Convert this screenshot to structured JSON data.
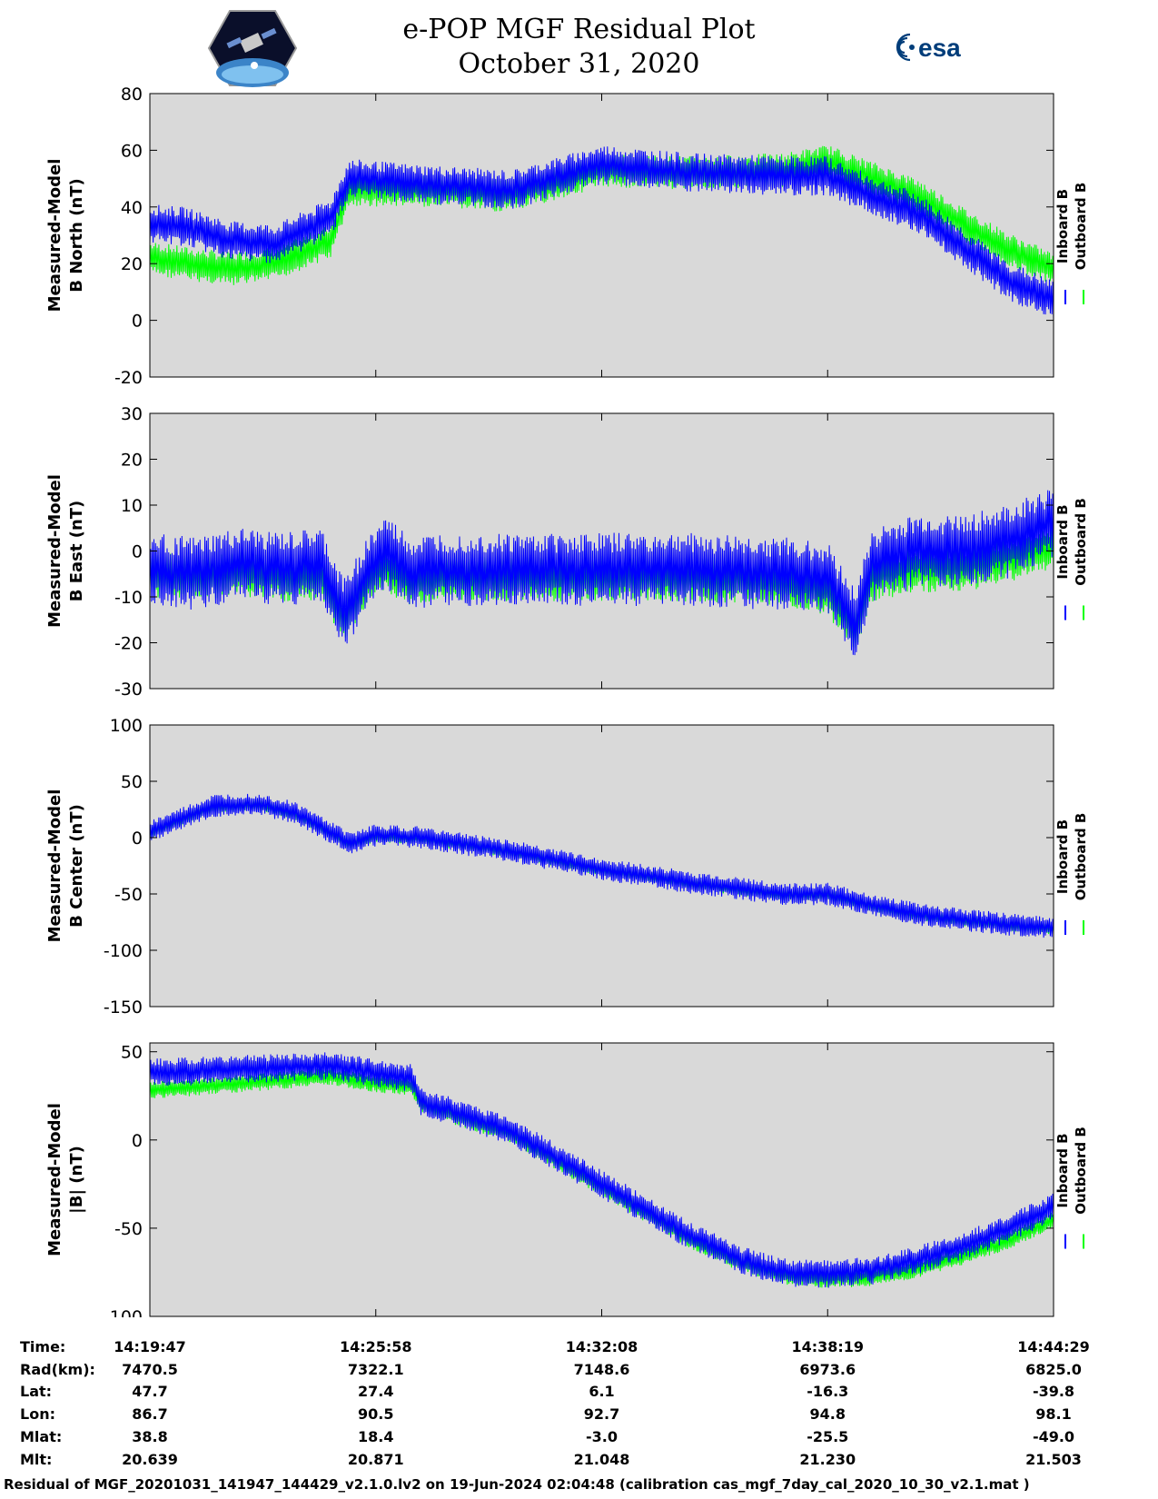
{
  "header": {
    "title_line1": "e-POP MGF Residual Plot",
    "title_line2": "October 31, 2020",
    "left_logo": "cassiope-mission-patch",
    "right_logo": "esa-logo",
    "right_logo_text": "esa"
  },
  "colors": {
    "inboard": "#0000ff",
    "outboard": "#00ff00",
    "plot_background": "#d9d9d9",
    "esa_blue": "#003d7a"
  },
  "chart_data": [
    {
      "type": "line",
      "ylabel": [
        "Measured-Model",
        "B North (nT)"
      ],
      "ylim": [
        -20,
        80
      ],
      "yticks": [
        -20,
        0,
        20,
        40,
        60,
        80
      ],
      "x": [
        0,
        0.04,
        0.09,
        0.14,
        0.2,
        0.22,
        0.3,
        0.4,
        0.5,
        0.6,
        0.7,
        0.75,
        0.8,
        0.85,
        0.9,
        0.95,
        1.0
      ],
      "series": [
        {
          "name": "Inboard B",
          "center": [
            34,
            33,
            28,
            27,
            36,
            50,
            48,
            46,
            55,
            52,
            51,
            51,
            44,
            38,
            26,
            14,
            7
          ],
          "amp": 7
        },
        {
          "name": "Outboard B",
          "center": [
            22,
            20,
            18,
            20,
            28,
            46,
            46,
            44,
            53,
            52,
            53,
            56,
            50,
            44,
            34,
            25,
            18
          ],
          "amp": 6
        }
      ],
      "legend": [
        "Inboard B",
        "Outboard B"
      ]
    },
    {
      "type": "line",
      "ylabel": [
        "Measured-Model",
        "B East (nT)"
      ],
      "ylim": [
        -30,
        30
      ],
      "yticks": [
        -30,
        -20,
        -10,
        0,
        10,
        20,
        30
      ],
      "x": [
        0,
        0.05,
        0.1,
        0.15,
        0.19,
        0.215,
        0.24,
        0.26,
        0.29,
        0.32,
        0.4,
        0.5,
        0.6,
        0.7,
        0.75,
        0.78,
        0.8,
        0.85,
        0.9,
        0.95,
        1.0
      ],
      "series": [
        {
          "name": "Inboard B",
          "center": [
            -4,
            -5,
            -3,
            -4,
            -3,
            -14,
            -5,
            0,
            -5,
            -4,
            -4,
            -4,
            -4,
            -5,
            -6,
            -16,
            -3,
            0,
            0,
            2,
            6
          ],
          "amp": 8
        },
        {
          "name": "Outboard B",
          "center": [
            -5,
            -6,
            -5,
            -6,
            -6,
            -15,
            -7,
            -4,
            -7,
            -6,
            -6,
            -6,
            -6,
            -7,
            -9,
            -18,
            -6,
            -4,
            -4,
            -2,
            1
          ],
          "amp": 5
        }
      ],
      "legend": [
        "Inboard B",
        "Outboard B"
      ]
    },
    {
      "type": "line",
      "ylabel": [
        "Measured-Model",
        "B Center (nT)"
      ],
      "ylim": [
        -150,
        100
      ],
      "yticks": [
        -150,
        -100,
        -50,
        0,
        50,
        100
      ],
      "x": [
        0,
        0.03,
        0.07,
        0.12,
        0.16,
        0.2,
        0.22,
        0.25,
        0.3,
        0.4,
        0.5,
        0.6,
        0.7,
        0.75,
        0.8,
        0.85,
        0.9,
        0.95,
        1.0
      ],
      "series": [
        {
          "name": "Inboard B",
          "center": [
            5,
            15,
            28,
            30,
            22,
            5,
            -5,
            2,
            0,
            -12,
            -28,
            -40,
            -50,
            -50,
            -60,
            -68,
            -73,
            -77,
            -80
          ],
          "amp": 10
        },
        {
          "name": "Outboard B",
          "center": [
            4,
            14,
            27,
            29,
            21,
            4,
            -6,
            1,
            -1,
            -13,
            -29,
            -41,
            -51,
            -51,
            -61,
            -69,
            -74,
            -78,
            -81
          ],
          "amp": 5
        }
      ],
      "legend": [
        "Inboard B",
        "Outboard B"
      ]
    },
    {
      "type": "line",
      "ylabel": [
        "Measured-Model",
        "|B| (nT)"
      ],
      "ylim": [
        -100,
        55
      ],
      "yticks": [
        -100,
        -50,
        0,
        50
      ],
      "x": [
        0,
        0.1,
        0.2,
        0.25,
        0.29,
        0.3,
        0.4,
        0.5,
        0.6,
        0.65,
        0.7,
        0.75,
        0.8,
        0.85,
        0.9,
        0.95,
        1.0
      ],
      "series": [
        {
          "name": "Inboard B",
          "center": [
            38,
            40,
            42,
            38,
            35,
            22,
            5,
            -25,
            -55,
            -67,
            -75,
            -76,
            -74,
            -68,
            -60,
            -50,
            -38
          ],
          "amp": 8
        },
        {
          "name": "Outboard B",
          "center": [
            28,
            32,
            36,
            32,
            30,
            20,
            3,
            -27,
            -57,
            -69,
            -77,
            -79,
            -78,
            -73,
            -66,
            -57,
            -45
          ],
          "amp": 5
        }
      ],
      "legend": [
        "Inboard B",
        "Outboard B"
      ]
    }
  ],
  "ephemeris": {
    "labels": [
      "Time:",
      "Rad(km):",
      "Lat:",
      "Lon:",
      "Mlat:",
      "Mlt:"
    ],
    "columns": [
      [
        "14:19:47",
        "7470.5",
        "47.7",
        "86.7",
        "38.8",
        "20.639"
      ],
      [
        "14:25:58",
        "7322.1",
        "27.4",
        "90.5",
        "18.4",
        "20.871"
      ],
      [
        "14:32:08",
        "7148.6",
        "6.1",
        "92.7",
        "-3.0",
        "21.048"
      ],
      [
        "14:38:19",
        "6973.6",
        "-16.3",
        "94.8",
        "-25.5",
        "21.230"
      ],
      [
        "14:44:29",
        "6825.0",
        "-39.8",
        "98.1",
        "-49.0",
        "21.503"
      ]
    ]
  },
  "footer": {
    "text": "Residual of MGF_20201031_141947_144429_v2.1.0.lv2 on 19-Jun-2024 02:04:48 (calibration cas_mgf_7day_cal_2020_10_30_v2.1.mat )"
  }
}
